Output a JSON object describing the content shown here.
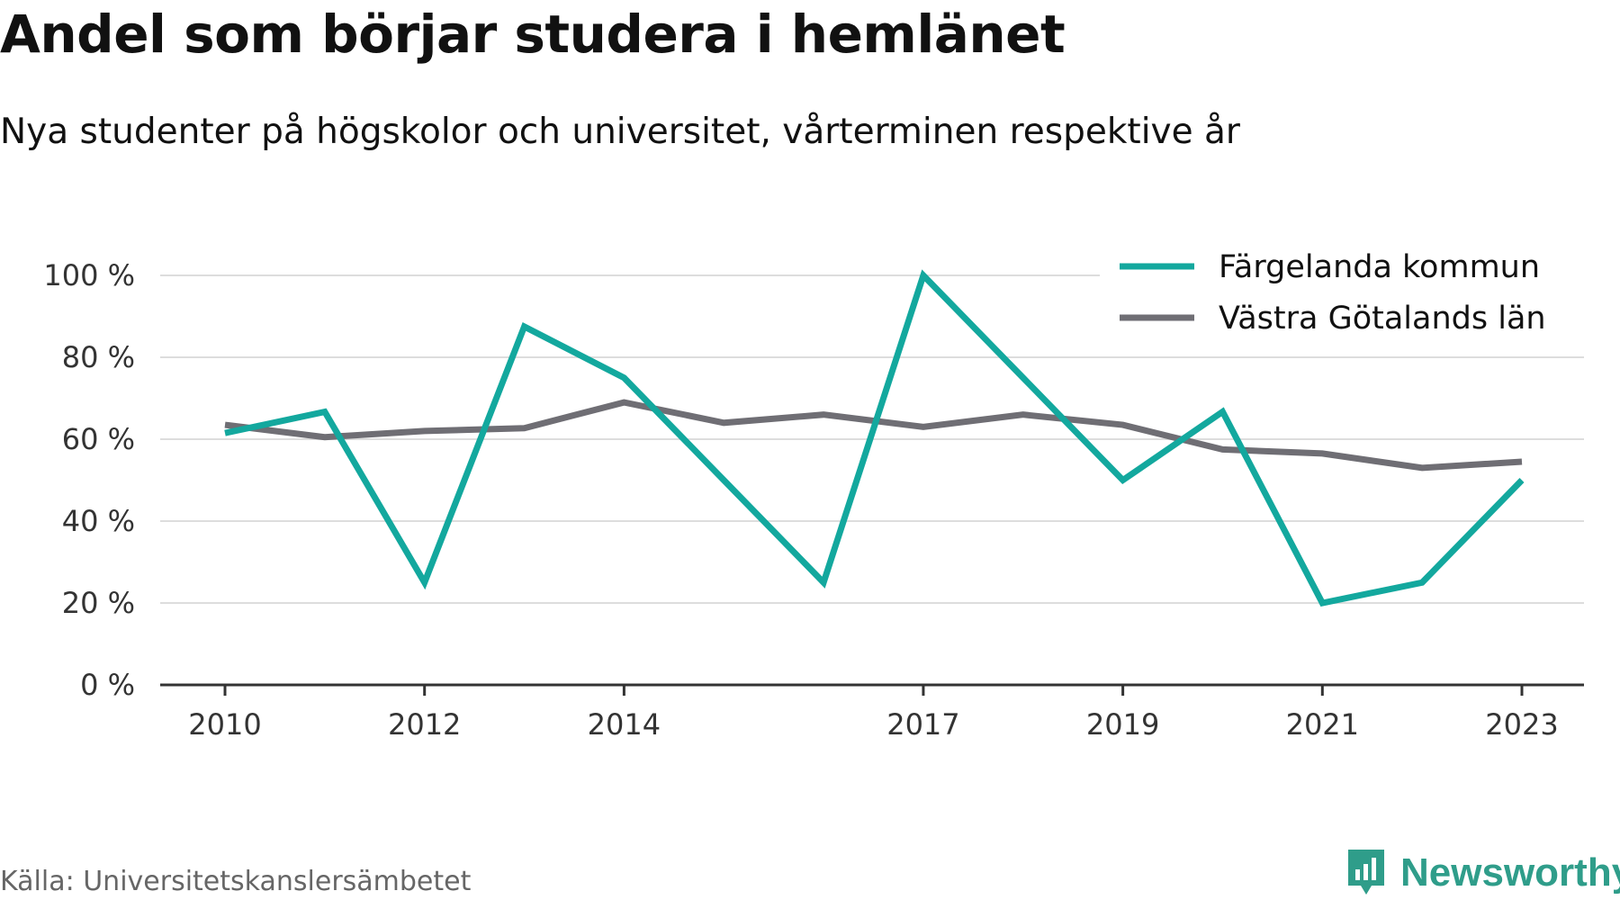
{
  "title": "Andel som börjar studera i hemlänet",
  "subtitle": "Nya studenter på högskolor och universitet, vårterminen respektive år",
  "source": "Källa: Universitetskanslersämbetet",
  "brand": {
    "name": "Newsworthy",
    "icon": "newsworthy-logo-icon",
    "color": "#2f9d8a"
  },
  "chart_data": {
    "type": "line",
    "x": [
      2010,
      2011,
      2012,
      2013,
      2014,
      2015,
      2016,
      2017,
      2018,
      2019,
      2020,
      2021,
      2022,
      2023
    ],
    "x_tick_labels": [
      "2010",
      "2012",
      "2014",
      "2017",
      "2019",
      "2021",
      "2023"
    ],
    "y_tick_labels": [
      "0 %",
      "20 %",
      "40 %",
      "60 %",
      "80 %",
      "100 %"
    ],
    "ylim": [
      0,
      100
    ],
    "y_ticks": [
      0,
      20,
      40,
      60,
      80,
      100
    ],
    "grid": true,
    "legend_position": "top-right",
    "series": [
      {
        "name": "Färgelanda kommun",
        "color": "#13a89e",
        "values": [
          61.5,
          66.7,
          25.0,
          87.5,
          75.0,
          50.0,
          25.0,
          100.0,
          75.0,
          50.0,
          66.7,
          20.0,
          25.0,
          50.0
        ]
      },
      {
        "name": "Västra Götalands län",
        "color": "#6f6e74",
        "values": [
          63.5,
          60.5,
          62.0,
          62.7,
          69.0,
          64.0,
          66.0,
          63.0,
          66.0,
          63.5,
          57.5,
          56.5,
          53.0,
          54.5
        ]
      }
    ]
  }
}
